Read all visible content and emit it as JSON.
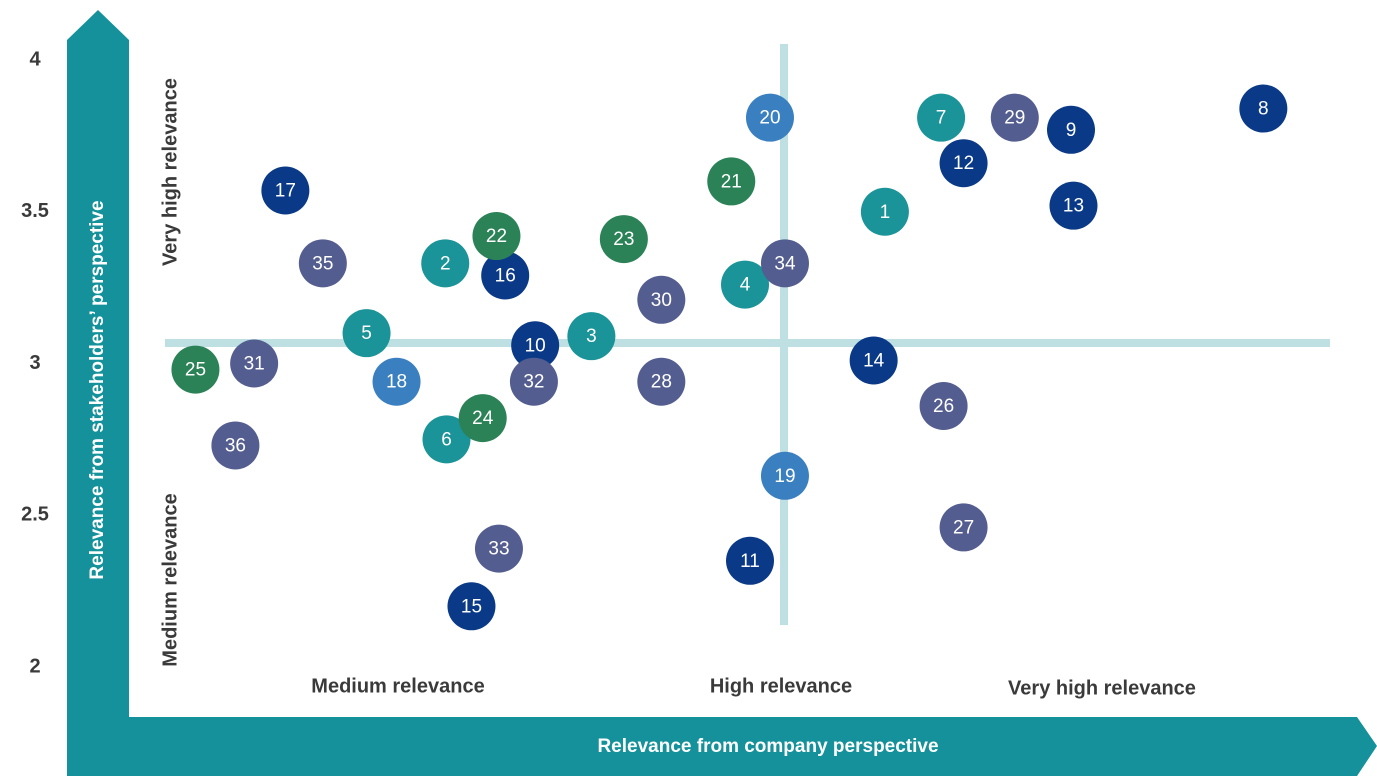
{
  "chart_data": {
    "type": "scatter",
    "y_label": "Relevance from stakeholders’ perspective",
    "x_label": "Relevance from company perspective",
    "y_zones": [
      "Very high relevance",
      "Medium relevance"
    ],
    "x_zones": [
      "Medium relevance",
      "High relevance",
      "Very high relevance"
    ],
    "ylim": [
      2,
      4
    ],
    "yticks": [
      2,
      2.5,
      3,
      3.5,
      4
    ],
    "xlim": [
      0,
      10
    ],
    "series": [
      {
        "color": "#1a9399",
        "labels": [
          "1",
          "2",
          "3",
          "4",
          "5",
          "6",
          "7"
        ],
        "x": [
          6.06,
          2.54,
          3.71,
          4.94,
          1.91,
          2.55,
          6.51
        ],
        "values": [
          3.5,
          3.33,
          3.09,
          3.26,
          3.1,
          2.75,
          3.81
        ]
      },
      {
        "color": "#0a3a87",
        "labels": [
          "8",
          "9",
          "10",
          "11",
          "12",
          "13",
          "14",
          "15",
          "16",
          "17"
        ],
        "x": [
          9.09,
          7.55,
          3.26,
          4.98,
          6.69,
          7.57,
          5.97,
          2.75,
          3.02,
          1.26
        ],
        "values": [
          3.84,
          3.77,
          3.06,
          2.35,
          3.66,
          3.52,
          3.01,
          2.2,
          3.29,
          3.57
        ]
      },
      {
        "color": "#3a7fc0",
        "labels": [
          "18",
          "19",
          "20"
        ],
        "x": [
          2.15,
          5.26,
          5.14
        ],
        "values": [
          2.94,
          2.63,
          3.81
        ]
      },
      {
        "color": "#2c8257",
        "labels": [
          "21",
          "22",
          "23",
          "24",
          "25"
        ],
        "x": [
          4.83,
          2.95,
          3.97,
          2.84,
          0.54
        ],
        "values": [
          3.6,
          3.42,
          3.41,
          2.82,
          2.98
        ]
      },
      {
        "color": "#545d8f",
        "labels": [
          "26",
          "27",
          "28",
          "29",
          "30",
          "31",
          "32",
          "33",
          "34",
          "35",
          "36"
        ],
        "x": [
          6.53,
          6.69,
          4.27,
          7.1,
          4.27,
          1.01,
          3.25,
          2.97,
          5.26,
          1.56,
          0.86
        ],
        "values": [
          2.86,
          2.46,
          2.94,
          3.81,
          3.21,
          3.0,
          2.94,
          2.39,
          3.33,
          3.33,
          2.73
        ]
      }
    ]
  }
}
